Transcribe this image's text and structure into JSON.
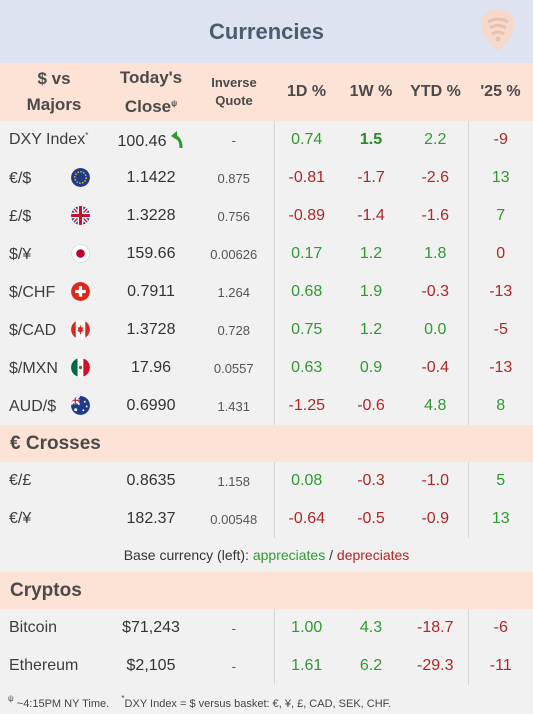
{
  "header": {
    "title": "Currencies",
    "logo_icon": "pick-logo-icon"
  },
  "columns": {
    "col1": [
      "$ vs",
      "Majors"
    ],
    "col2": [
      "Today's",
      "Close"
    ],
    "col2_sup": "ψ",
    "col3": [
      "Inverse",
      "Quote"
    ],
    "col4": "1D %",
    "col5": "1W %",
    "col6": "YTD %",
    "col7": "'25 %"
  },
  "majors": [
    {
      "name": "DXY Index",
      "sup": "*",
      "close": "100.46",
      "inverse": "-",
      "d1": "0.74",
      "w1": "1.5",
      "ytd": "2.2",
      "y25": "-9",
      "icon": "uptick-arrow-icon"
    },
    {
      "name": "€/$",
      "close": "1.1422",
      "inverse": "0.875",
      "d1": "-0.81",
      "w1": "-1.7",
      "ytd": "-2.6",
      "y25": "13",
      "icon": "eu-flag-icon"
    },
    {
      "name": "£/$",
      "close": "1.3228",
      "inverse": "0.756",
      "d1": "-0.89",
      "w1": "-1.4",
      "ytd": "-1.6",
      "y25": "7",
      "icon": "uk-flag-icon"
    },
    {
      "name": "$/¥",
      "close": "159.66",
      "inverse": "0.00626",
      "d1": "0.17",
      "w1": "1.2",
      "ytd": "1.8",
      "y25": "0",
      "icon": "japan-flag-icon"
    },
    {
      "name": "$/CHF",
      "close": "0.7911",
      "inverse": "1.264",
      "d1": "0.68",
      "w1": "1.9",
      "ytd": "-0.3",
      "y25": "-13",
      "icon": "swiss-flag-icon"
    },
    {
      "name": "$/CAD",
      "close": "1.3728",
      "inverse": "0.728",
      "d1": "0.75",
      "w1": "1.2",
      "ytd": "0.0",
      "y25": "-5",
      "icon": "canada-flag-icon"
    },
    {
      "name": "$/MXN",
      "close": "17.96",
      "inverse": "0.0557",
      "d1": "0.63",
      "w1": "0.9",
      "ytd": "-0.4",
      "y25": "-13",
      "icon": "mexico-flag-icon"
    },
    {
      "name": "AUD/$",
      "close": "0.6990",
      "inverse": "1.431",
      "d1": "-1.25",
      "w1": "-0.6",
      "ytd": "4.8",
      "y25": "8",
      "icon": "australia-flag-icon"
    }
  ],
  "crosses_title": "€ Crosses",
  "crosses": [
    {
      "name": "€/£",
      "close": "0.8635",
      "inverse": "1.158",
      "d1": "0.08",
      "w1": "-0.3",
      "ytd": "-1.0",
      "y25": "5"
    },
    {
      "name": "€/¥",
      "close": "182.37",
      "inverse": "0.00548",
      "d1": "-0.64",
      "w1": "-0.5",
      "ytd": "-0.9",
      "y25": "13"
    }
  ],
  "legend": {
    "prefix": "Base currency (left):",
    "appreciates": "appreciates",
    "slash": "/",
    "depreciates": "depreciates"
  },
  "cryptos_title": "Cryptos",
  "cryptos": [
    {
      "name": "Bitcoin",
      "close": "$71,243",
      "inverse": "-",
      "d1": "1.00",
      "w1": "4.3",
      "ytd": "-18.7",
      "y25": "-6"
    },
    {
      "name": "Ethereum",
      "close": "$2,105",
      "inverse": "-",
      "d1": "1.61",
      "w1": "6.2",
      "ytd": "-29.3",
      "y25": "-11"
    }
  ],
  "footnote": {
    "sup1": "ψ",
    "text1": "~4:15PM NY Time.",
    "sup2": "*",
    "text2": "DXY Index = $ versus basket: €, ¥, £, CAD, SEK, CHF."
  },
  "colors": {
    "positive": "#2e9a2e",
    "negative": "#b32525",
    "header_bg": "#fde3d5",
    "title_bg": "#dde3f1"
  }
}
